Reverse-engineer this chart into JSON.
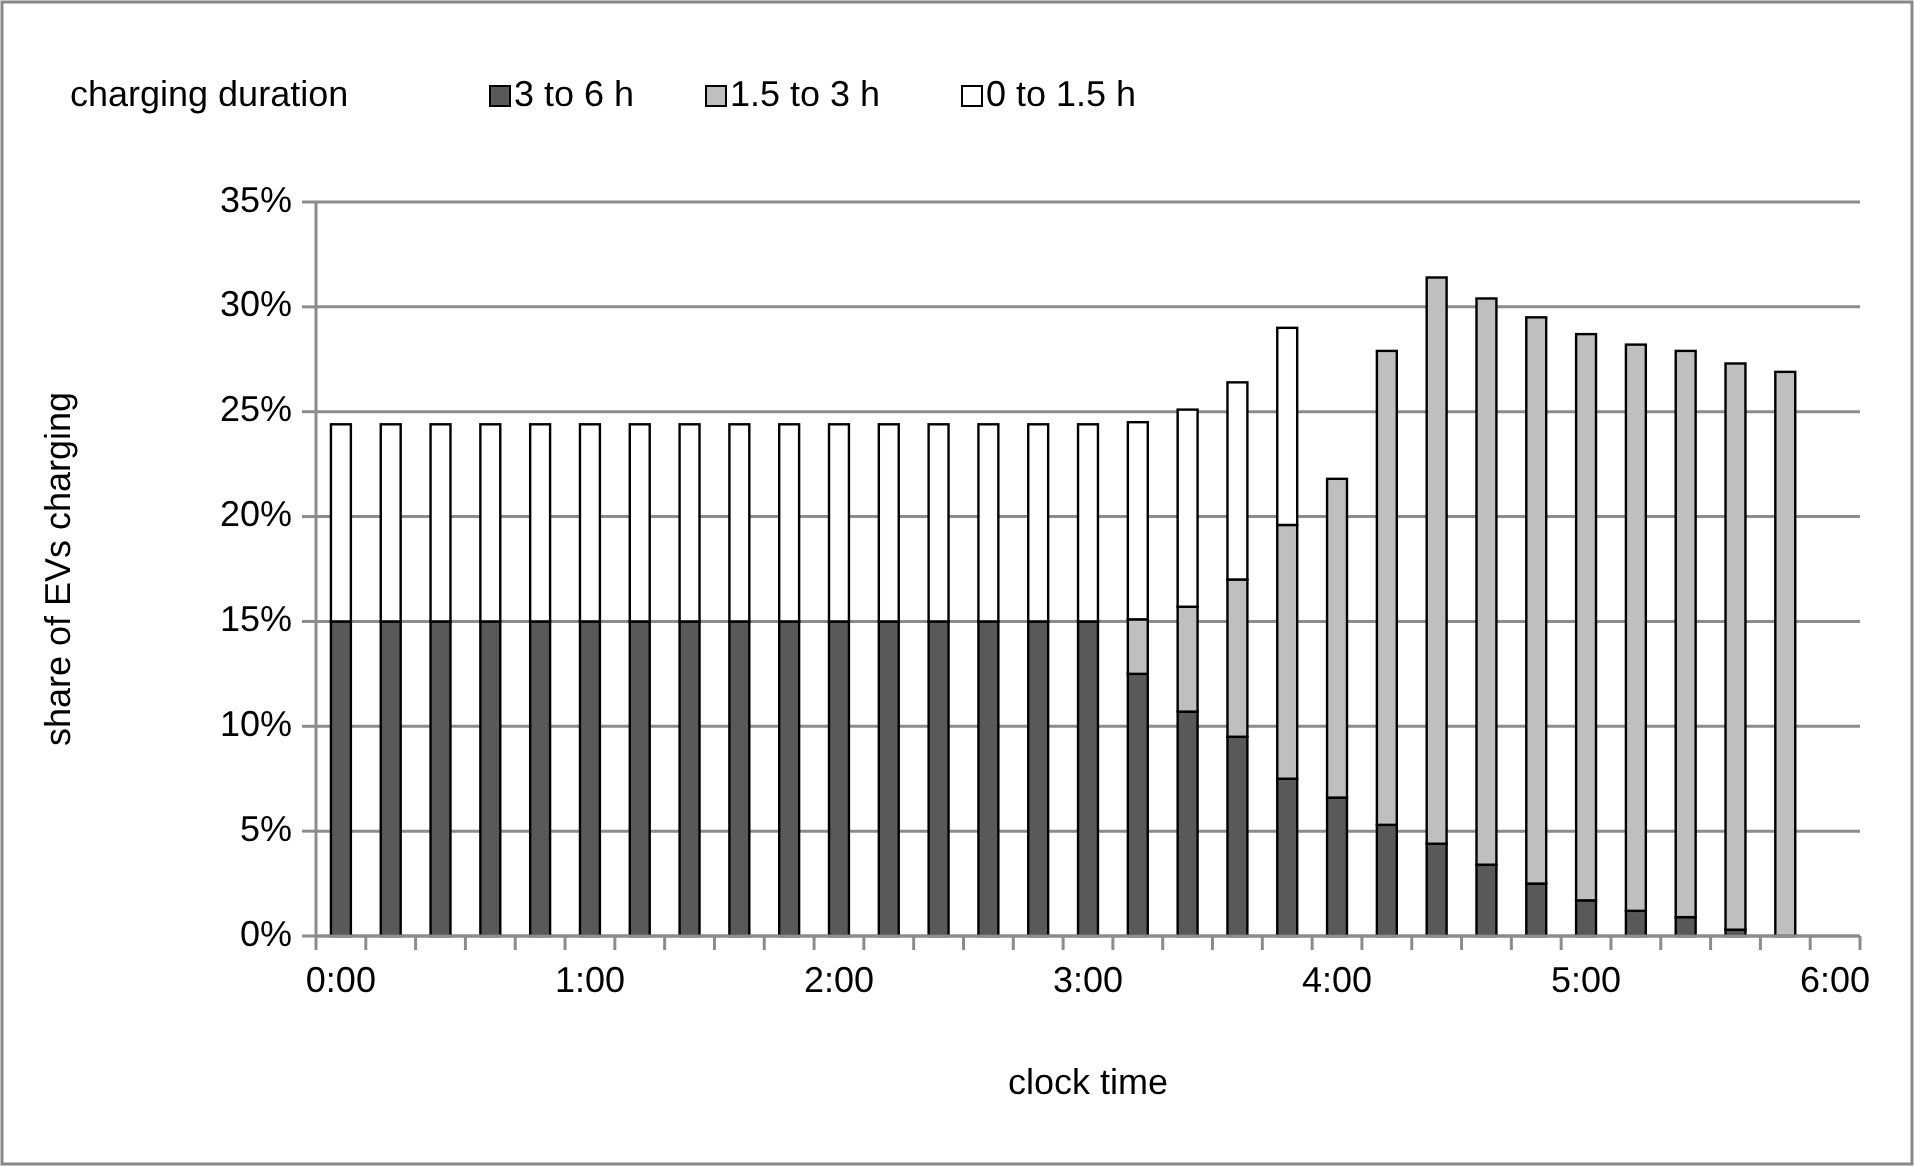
{
  "chart_data": {
    "type": "bar",
    "stacked": true,
    "legend_title": "charging duration",
    "xlabel": "clock time",
    "ylabel": "share of EVs charging",
    "categories": [
      "0:00",
      null,
      null,
      null,
      null,
      "1:00",
      null,
      null,
      null,
      null,
      "2:00",
      null,
      null,
      null,
      null,
      "3:00",
      null,
      null,
      null,
      null,
      "4:00",
      null,
      null,
      null,
      null,
      "5:00",
      null,
      null,
      null,
      null,
      "6:00"
    ],
    "series": [
      {
        "name": "3 to 6 h",
        "color": "#595959",
        "values": [
          15,
          15,
          15,
          15,
          15,
          15,
          15,
          15,
          15,
          15,
          15,
          15,
          15,
          15,
          15,
          15,
          12.5,
          10.7,
          9.5,
          7.5,
          6.6,
          5.3,
          4.4,
          3.4,
          2.5,
          1.7,
          1.2,
          0.9,
          0.3,
          0,
          null
        ]
      },
      {
        "name": "1.5 to 3 h",
        "color": "#bfbfbf",
        "values": [
          0,
          0,
          0,
          0,
          0,
          0,
          0,
          0,
          0,
          0,
          0,
          0,
          0,
          0,
          0,
          0,
          2.6,
          5.0,
          7.5,
          12.1,
          15.2,
          22.6,
          27.0,
          27.0,
          27.0,
          27.0,
          27.0,
          27.0,
          27.0,
          26.9,
          null
        ]
      },
      {
        "name": "0 to 1.5 h",
        "color": "#ffffff",
        "values": [
          9.4,
          9.4,
          9.4,
          9.4,
          9.4,
          9.4,
          9.4,
          9.4,
          9.4,
          9.4,
          9.4,
          9.4,
          9.4,
          9.4,
          9.4,
          9.4,
          9.4,
          9.4,
          9.4,
          9.4,
          null,
          null,
          null,
          null,
          null,
          null,
          null,
          null,
          null,
          null,
          null
        ]
      }
    ],
    "ylim": [
      0,
      35
    ],
    "yticks": [
      {
        "value": 0,
        "label": "0%"
      },
      {
        "value": 5,
        "label": "5%"
      },
      {
        "value": 10,
        "label": "10%"
      },
      {
        "value": 15,
        "label": "15%"
      },
      {
        "value": 20,
        "label": "20%"
      },
      {
        "value": 25,
        "label": "25%"
      },
      {
        "value": 30,
        "label": "30%"
      },
      {
        "value": 35,
        "label": "35%"
      }
    ],
    "grid": "y",
    "legend": "top"
  }
}
